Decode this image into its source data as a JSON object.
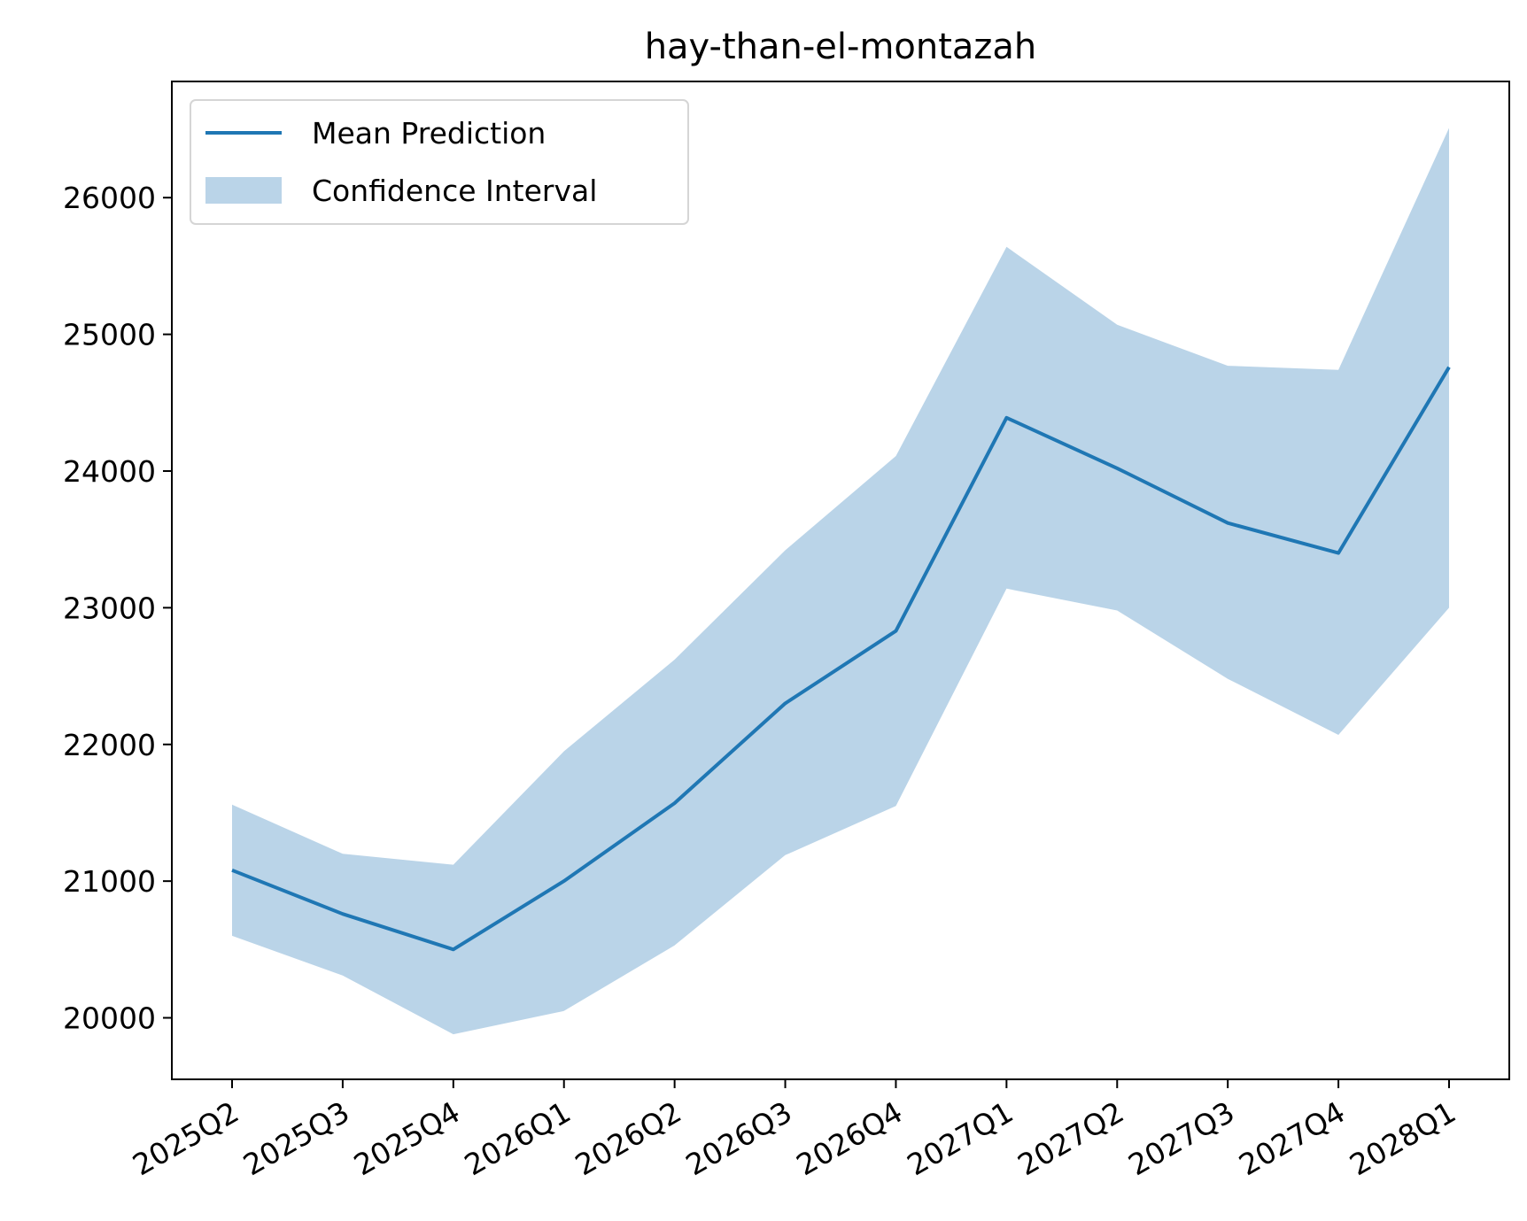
{
  "chart_data": {
    "type": "line",
    "title": "hay-than-el-montazah",
    "xlabel": "",
    "ylabel": "",
    "categories": [
      "2025Q2",
      "2025Q3",
      "2025Q4",
      "2026Q1",
      "2026Q2",
      "2026Q3",
      "2026Q4",
      "2027Q1",
      "2027Q2",
      "2027Q3",
      "2027Q4",
      "2028Q1"
    ],
    "series": [
      {
        "name": "Mean Prediction",
        "values": [
          21080,
          20760,
          20500,
          21000,
          21570,
          22300,
          22830,
          24390,
          24020,
          23620,
          23400,
          24760
        ]
      }
    ],
    "confidence_interval": {
      "name": "Confidence Interval",
      "lower": [
        20600,
        20310,
        19880,
        20050,
        20530,
        21190,
        21550,
        23140,
        22980,
        22480,
        22070,
        23000
      ],
      "upper": [
        21560,
        21200,
        21120,
        21950,
        22620,
        23420,
        24110,
        25640,
        25070,
        24770,
        24740,
        26510
      ]
    },
    "ylim": [
      19550,
      26850
    ],
    "yticks": [
      20000,
      21000,
      22000,
      23000,
      24000,
      25000,
      26000
    ],
    "grid": false,
    "legend_position": "upper-left",
    "colors": {
      "line": "#1f77b4",
      "band": "#bad4e8",
      "axes": "#000000"
    }
  }
}
